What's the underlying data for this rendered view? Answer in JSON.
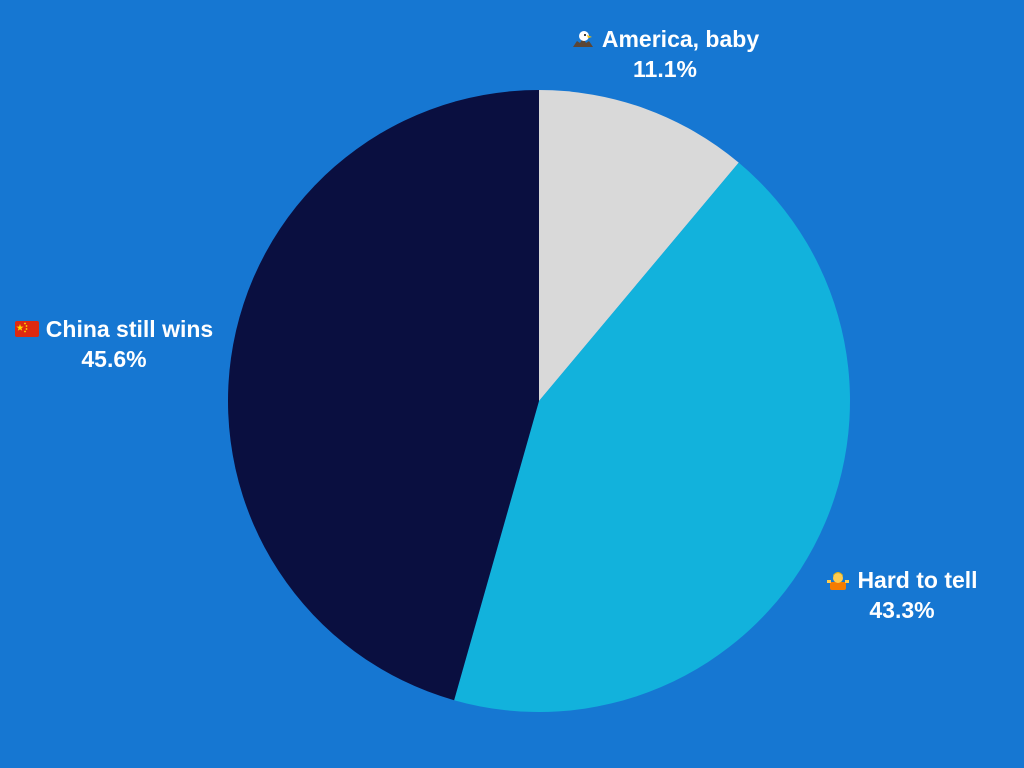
{
  "chart_data": {
    "type": "pie",
    "title": "",
    "slices": [
      {
        "label": "America, baby",
        "value": 11.1,
        "display": "11.1%",
        "color": "#d9d9d9",
        "icon": "eagle-icon"
      },
      {
        "label": "Hard to tell",
        "value": 43.3,
        "display": "43.3%",
        "color": "#12b2dc",
        "icon": "shrug-person-icon"
      },
      {
        "label": "China still wins",
        "value": 45.6,
        "display": "45.6%",
        "color": "#0a0f40",
        "icon": "china-flag-icon"
      }
    ],
    "start_angle_deg": 0,
    "direction": "clockwise",
    "background": "#1677d2",
    "label_color": "#ffffff"
  }
}
